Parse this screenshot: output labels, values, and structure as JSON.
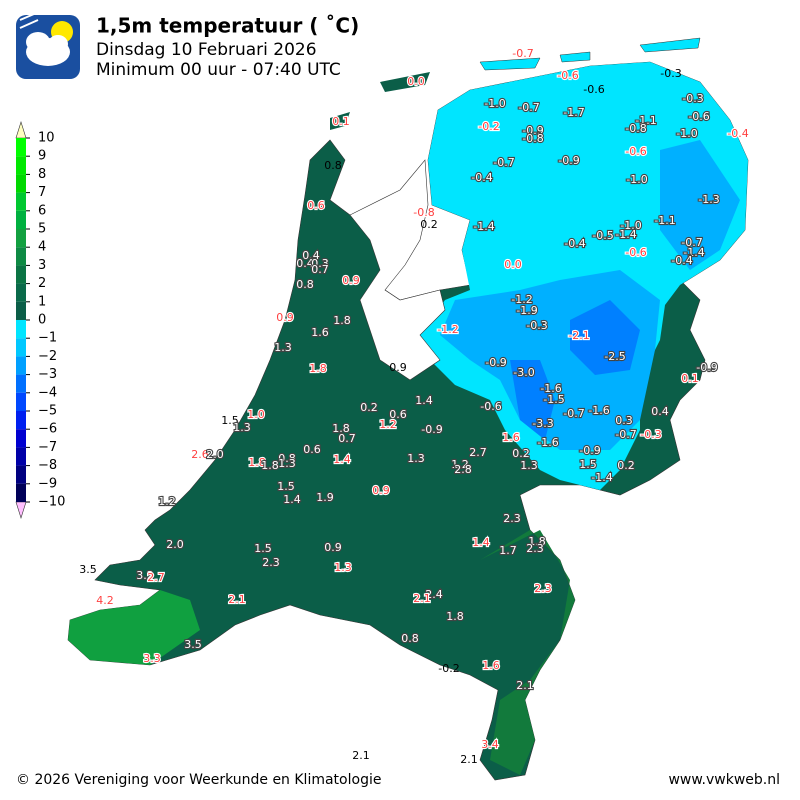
{
  "header": {
    "title": "1,5m temperatuur ( ˚C)",
    "subtitle": "Dinsdag 10 Februari 2026",
    "period": "Minimum 00 uur - 07:40 UTC"
  },
  "colorbar_ticks": [
    "10",
    "9",
    "8",
    "7",
    "6",
    "5",
    "4",
    "3",
    "2",
    "1",
    "0",
    "−1",
    "−2",
    "−3",
    "−4",
    "−5",
    "−6",
    "−7",
    "−8",
    "−9",
    "−10"
  ],
  "stations": [
    "-0.7",
    "0.0",
    "-0.6",
    "-0.6",
    "-0.3",
    "0.1",
    "-1.0",
    "-0.7",
    "-1.7",
    "-0.3",
    "-0.6",
    "-0.2",
    "-0.9",
    "-0.8",
    "-1.1",
    "-0.8",
    "-1.0",
    "-0.4",
    "0.8",
    "-0.7",
    "-0.9",
    "-0.6",
    "-0.4",
    "-1.0",
    "0.6",
    "-1.3",
    "-0.8",
    "0.2",
    "-1.4",
    "-1.0",
    "-1.1",
    "-0.4",
    "-0.5",
    "-1.4",
    "-0.7",
    "-0.6",
    "-1.4",
    "-0.4",
    "0.4",
    "0.4",
    "0.3",
    "0.7",
    "0.0",
    "0.8",
    "0.9",
    "0.9",
    "-1.2",
    "-1.9",
    "1.8",
    "1.6",
    "-1.2",
    "-0.3",
    "-2.1",
    "1.3",
    "-2.5",
    "-0.9",
    "1.8",
    "0.9",
    "-3.0",
    "-0.9",
    "0.1",
    "-1.6",
    "-1.5",
    "1.4",
    "1.5",
    "1.0",
    "1.3",
    "0.2",
    "0.6",
    "-0.6",
    "-0.7",
    "-1.6",
    "0.4",
    "1.8",
    "1.2",
    "-3.3",
    "-0.9",
    "0.3",
    "0.7",
    "1.6",
    "-0.7",
    "-0.3",
    "-1.6",
    "0.6",
    "2.6",
    "2.0",
    "-0.9",
    "2.7",
    "0.2",
    "1.8",
    "1.8",
    "0.8",
    "1.3",
    "1.4",
    "1.3",
    "1.2",
    "2.8",
    "1.3",
    "1.5",
    "0.2",
    "-1.4",
    "1.5",
    "0.9",
    "1.4",
    "1.9",
    "1.2",
    "2.3",
    "2.0",
    "1.4",
    "1.8",
    "1.7",
    "2.3",
    "1.5",
    "0.9",
    "2.3",
    "3.5",
    "3.2",
    "2.7",
    "1.3",
    "2.3",
    "2.4",
    "2.1",
    "4.2",
    "2.1",
    "1.8",
    "0.8",
    "3.5",
    "3.3",
    "-0.2",
    "1.6",
    "2.1",
    "3.4",
    "2.1",
    "2.1"
  ],
  "footer": {
    "copyright": "© 2026 Vereniging voor Weerkunde en Klimatologie",
    "website": "www.vwkweb.nl"
  }
}
